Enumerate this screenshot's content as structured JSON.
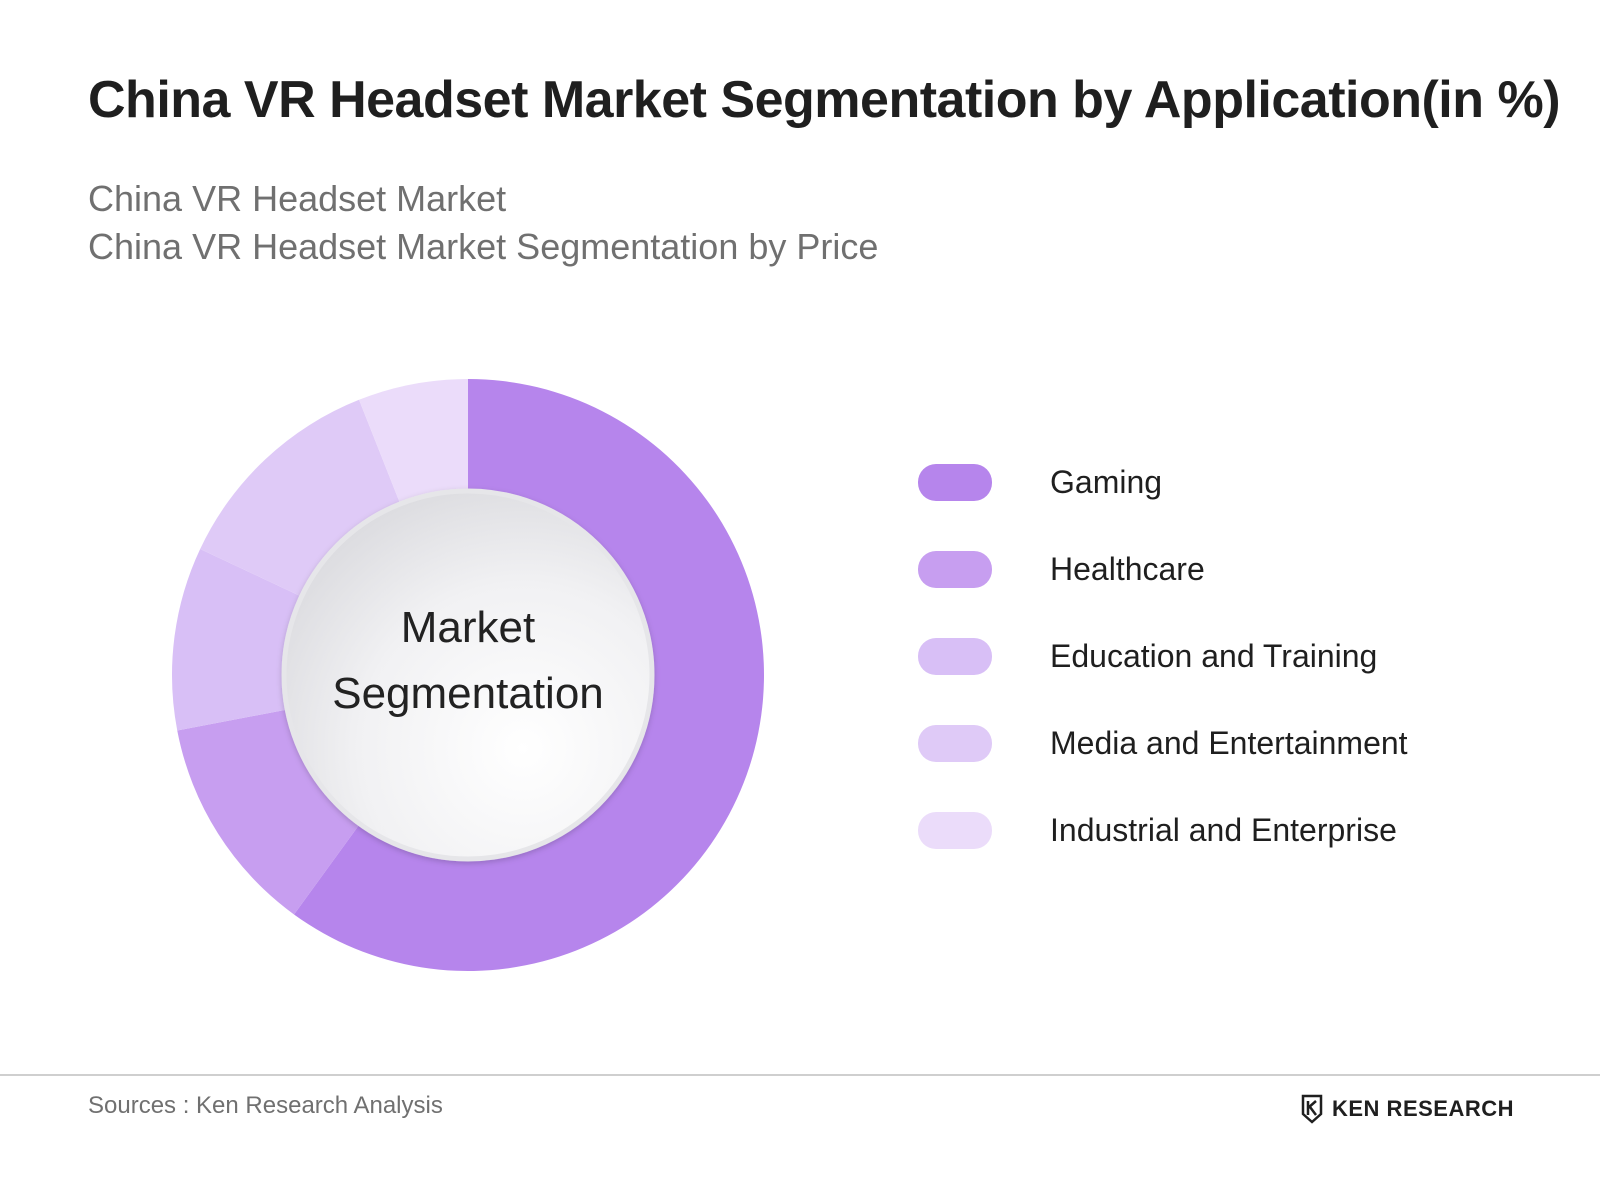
{
  "title": "China VR Headset Market Segmentation by Application(in %)",
  "subtitles": [
    "China VR Headset Market",
    "China VR Headset Market Segmentation by Price"
  ],
  "center_label": [
    "Market",
    "Segmentation"
  ],
  "footer": {
    "sources": "Sources : Ken Research Analysis",
    "brand": "KEN RESEARCH"
  },
  "colors": {
    "gaming": "#b685ec",
    "healthcare": "#c79ef0",
    "education": "#d8bff6",
    "media": "#dfcaf7",
    "industrial": "#ebdcfa"
  },
  "chart_data": {
    "type": "pie",
    "variant": "donut",
    "title": "China VR Headset Market Segmentation by Application(in %)",
    "categories": [
      "Gaming",
      "Healthcare",
      "Education and Training",
      "Media and Entertainment",
      "Industrial and Enterprise"
    ],
    "values": [
      60,
      12,
      10,
      12,
      6
    ],
    "colors": [
      "#b685ec",
      "#c79ef0",
      "#d8bff6",
      "#dfcaf7",
      "#ebdcfa"
    ],
    "legend": "right"
  }
}
